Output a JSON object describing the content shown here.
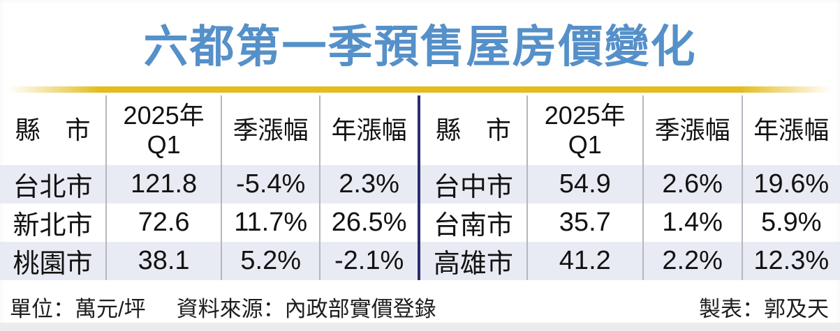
{
  "title": "六都第一季預售屋房價變化",
  "colors": {
    "title_blue": "#5590c9",
    "accent_yellow": "#e3bd20",
    "center_divider_navy": "#2c2c6e",
    "row_stripe": "#e9ebf4",
    "column_divider_gray": "#b5b6c0"
  },
  "table": {
    "headers": {
      "city": "縣　市",
      "q1": "2025年\nQ1",
      "qoq": "季漲幅",
      "yoy": "年漲幅"
    },
    "left_rows": [
      {
        "city": "台北市",
        "q1": "121.8",
        "qoq": "-5.4%",
        "yoy": "2.3%"
      },
      {
        "city": "新北市",
        "q1": "72.6",
        "qoq": "11.7%",
        "yoy": "26.5%"
      },
      {
        "city": "桃園市",
        "q1": "38.1",
        "qoq": "5.2%",
        "yoy": "-2.1%"
      }
    ],
    "right_rows": [
      {
        "city": "台中市",
        "q1": "54.9",
        "qoq": "2.6%",
        "yoy": "19.6%"
      },
      {
        "city": "台南市",
        "q1": "35.7",
        "qoq": "1.4%",
        "yoy": "5.9%"
      },
      {
        "city": "高雄市",
        "q1": "41.2",
        "qoq": "2.2%",
        "yoy": "12.3%"
      }
    ]
  },
  "footer": {
    "unit": "單位：萬元/坪",
    "source": "資料來源：內政部實價登錄",
    "credit": "製表：郭及天"
  },
  "chart_data": {
    "type": "table",
    "title": "六都第一季預售屋房價變化",
    "columns": [
      "縣市",
      "2025年Q1",
      "季漲幅",
      "年漲幅"
    ],
    "rows": [
      [
        "台北市",
        121.8,
        "-5.4%",
        "2.3%"
      ],
      [
        "新北市",
        72.6,
        "11.7%",
        "26.5%"
      ],
      [
        "桃園市",
        38.1,
        "5.2%",
        "-2.1%"
      ],
      [
        "台中市",
        54.9,
        "2.6%",
        "19.6%"
      ],
      [
        "台南市",
        35.7,
        "1.4%",
        "5.9%"
      ],
      [
        "高雄市",
        41.2,
        "2.2%",
        "12.3%"
      ]
    ],
    "unit": "萬元/坪",
    "source": "內政部實價登錄",
    "credit": "郭及天"
  }
}
